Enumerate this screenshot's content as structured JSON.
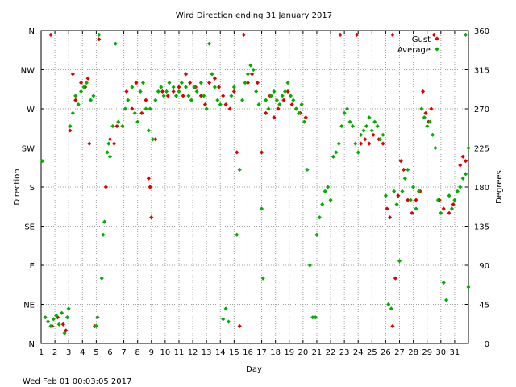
{
  "chart_data": {
    "type": "scatter",
    "title": "Wird Direction ending 31 January 2017",
    "xlabel": "Day",
    "ylabel_left": "Direction",
    "ylabel_right": "Degrees",
    "footer": "Wed Feb 01 00:03:05 2017",
    "xlim": [
      1,
      32
    ],
    "ylim": [
      0,
      360
    ],
    "grid": true,
    "legend_placement": "top-right",
    "x_ticks": [
      "1",
      "2",
      "3",
      "4",
      "5",
      "6",
      "7",
      "8",
      "9",
      "10",
      "11",
      "12",
      "13",
      "14",
      "15",
      "16",
      "17",
      "18",
      "19",
      "20",
      "21",
      "22",
      "23",
      "24",
      "25",
      "26",
      "27",
      "28",
      "29",
      "30",
      "31"
    ],
    "y_ticks_left": [
      {
        "value": 0,
        "label": "N"
      },
      {
        "value": 45,
        "label": "NE"
      },
      {
        "value": 90,
        "label": "E"
      },
      {
        "value": 135,
        "label": "SE"
      },
      {
        "value": 180,
        "label": "S"
      },
      {
        "value": 225,
        "label": "SW"
      },
      {
        "value": 270,
        "label": "W"
      },
      {
        "value": 315,
        "label": "NW"
      },
      {
        "value": 360,
        "label": "N"
      }
    ],
    "y_ticks_right": [
      {
        "value": 0,
        "label": "0"
      },
      {
        "value": 45,
        "label": "45"
      },
      {
        "value": 90,
        "label": "90"
      },
      {
        "value": 135,
        "label": "135"
      },
      {
        "value": 180,
        "label": "180"
      },
      {
        "value": 225,
        "label": "225"
      },
      {
        "value": 270,
        "label": "270"
      },
      {
        "value": 315,
        "label": "315"
      },
      {
        "value": 360,
        "label": "360"
      }
    ],
    "series": [
      {
        "name": "Gust",
        "color": "#e00000",
        "points": [
          [
            1.7,
            355
          ],
          [
            1.5,
            25
          ],
          [
            1.8,
            20
          ],
          [
            2.2,
            30
          ],
          [
            2.6,
            22
          ],
          [
            2.8,
            15
          ],
          [
            3.1,
            245
          ],
          [
            3.3,
            310
          ],
          [
            3.5,
            280
          ],
          [
            3.9,
            300
          ],
          [
            4.2,
            295
          ],
          [
            4.4,
            305
          ],
          [
            4.5,
            230
          ],
          [
            4.9,
            20
          ],
          [
            5.2,
            350
          ],
          [
            5.7,
            180
          ],
          [
            6.0,
            235
          ],
          [
            6.3,
            230
          ],
          [
            6.5,
            250
          ],
          [
            7.2,
            290
          ],
          [
            7.6,
            270
          ],
          [
            7.9,
            300
          ],
          [
            8.3,
            265
          ],
          [
            8.6,
            280
          ],
          [
            8.8,
            190
          ],
          [
            8.9,
            180
          ],
          [
            9.0,
            145
          ],
          [
            9.3,
            235
          ],
          [
            9.8,
            290
          ],
          [
            10.2,
            285
          ],
          [
            10.6,
            290
          ],
          [
            11.0,
            295
          ],
          [
            11.3,
            285
          ],
          [
            11.5,
            310
          ],
          [
            11.8,
            300
          ],
          [
            12.2,
            295
          ],
          [
            12.6,
            285
          ],
          [
            12.9,
            275
          ],
          [
            13.2,
            300
          ],
          [
            13.6,
            305
          ],
          [
            13.9,
            295
          ],
          [
            14.2,
            285
          ],
          [
            14.4,
            275
          ],
          [
            14.7,
            270
          ],
          [
            15.0,
            290
          ],
          [
            15.2,
            220
          ],
          [
            15.4,
            20
          ],
          [
            15.7,
            355
          ],
          [
            16.0,
            300
          ],
          [
            16.3,
            310
          ],
          [
            16.7,
            300
          ],
          [
            17.0,
            220
          ],
          [
            17.3,
            265
          ],
          [
            17.6,
            285
          ],
          [
            17.9,
            260
          ],
          [
            18.2,
            270
          ],
          [
            18.6,
            280
          ],
          [
            18.9,
            290
          ],
          [
            19.2,
            275
          ],
          [
            19.5,
            270
          ],
          [
            19.8,
            265
          ],
          [
            20.2,
            260
          ],
          [
            22.7,
            355
          ],
          [
            23.9,
            355
          ],
          [
            24.2,
            230
          ],
          [
            24.5,
            235
          ],
          [
            24.8,
            230
          ],
          [
            25.1,
            240
          ],
          [
            25.5,
            235
          ],
          [
            25.8,
            230
          ],
          [
            26.1,
            155
          ],
          [
            26.3,
            145
          ],
          [
            26.5,
            20
          ],
          [
            26.7,
            75
          ],
          [
            26.9,
            170
          ],
          [
            27.1,
            210
          ],
          [
            27.3,
            200
          ],
          [
            27.6,
            165
          ],
          [
            27.9,
            150
          ],
          [
            28.2,
            165
          ],
          [
            28.5,
            175
          ],
          [
            28.7,
            290
          ],
          [
            28.9,
            265
          ],
          [
            29.1,
            255
          ],
          [
            29.3,
            270
          ],
          [
            29.9,
            165
          ],
          [
            30.2,
            155
          ],
          [
            30.6,
            150
          ],
          [
            30.9,
            160
          ],
          [
            31.4,
            205
          ],
          [
            31.6,
            215
          ],
          [
            31.8,
            210
          ],
          [
            26.5,
            355
          ],
          [
            29.5,
            355
          ]
        ]
      },
      {
        "name": "Average",
        "color": "#00b000",
        "points": [
          [
            1.1,
            210
          ],
          [
            1.3,
            30
          ],
          [
            1.5,
            25
          ],
          [
            1.7,
            20
          ],
          [
            1.9,
            28
          ],
          [
            2.1,
            32
          ],
          [
            2.3,
            22
          ],
          [
            2.5,
            35
          ],
          [
            2.7,
            12
          ],
          [
            2.9,
            30
          ],
          [
            3.0,
            40
          ],
          [
            3.1,
            250
          ],
          [
            3.3,
            265
          ],
          [
            3.5,
            285
          ],
          [
            3.7,
            275
          ],
          [
            3.9,
            290
          ],
          [
            4.1,
            295
          ],
          [
            4.3,
            300
          ],
          [
            4.6,
            280
          ],
          [
            4.8,
            285
          ],
          [
            5.0,
            20
          ],
          [
            5.1,
            30
          ],
          [
            5.2,
            355
          ],
          [
            5.4,
            75
          ],
          [
            5.5,
            125
          ],
          [
            5.6,
            140
          ],
          [
            5.8,
            220
          ],
          [
            5.9,
            230
          ],
          [
            6.0,
            215
          ],
          [
            6.2,
            250
          ],
          [
            6.4,
            345
          ],
          [
            6.6,
            255
          ],
          [
            6.9,
            250
          ],
          [
            7.1,
            270
          ],
          [
            7.3,
            280
          ],
          [
            7.6,
            295
          ],
          [
            7.8,
            265
          ],
          [
            8.0,
            255
          ],
          [
            8.2,
            290
          ],
          [
            8.4,
            300
          ],
          [
            8.6,
            270
          ],
          [
            8.8,
            245
          ],
          [
            8.9,
            270
          ],
          [
            9.1,
            235
          ],
          [
            9.3,
            280
          ],
          [
            9.5,
            290
          ],
          [
            9.7,
            295
          ],
          [
            9.9,
            285
          ],
          [
            10.1,
            290
          ],
          [
            10.3,
            300
          ],
          [
            10.6,
            295
          ],
          [
            10.8,
            285
          ],
          [
            11.0,
            290
          ],
          [
            11.2,
            300
          ],
          [
            11.5,
            295
          ],
          [
            11.7,
            285
          ],
          [
            11.9,
            280
          ],
          [
            12.1,
            295
          ],
          [
            12.3,
            290
          ],
          [
            12.6,
            300
          ],
          [
            12.8,
            285
          ],
          [
            13.0,
            270
          ],
          [
            13.2,
            345
          ],
          [
            13.4,
            310
          ],
          [
            13.6,
            295
          ],
          [
            13.8,
            280
          ],
          [
            14.0,
            275
          ],
          [
            14.2,
            28
          ],
          [
            14.4,
            40
          ],
          [
            14.6,
            25
          ],
          [
            14.8,
            285
          ],
          [
            15.0,
            295
          ],
          [
            15.2,
            125
          ],
          [
            15.4,
            200
          ],
          [
            15.6,
            280
          ],
          [
            15.8,
            300
          ],
          [
            16.0,
            310
          ],
          [
            16.2,
            320
          ],
          [
            16.4,
            315
          ],
          [
            16.6,
            290
          ],
          [
            16.8,
            275
          ],
          [
            17.0,
            155
          ],
          [
            17.1,
            75
          ],
          [
            17.3,
            280
          ],
          [
            17.5,
            270
          ],
          [
            17.7,
            285
          ],
          [
            17.9,
            290
          ],
          [
            18.1,
            280
          ],
          [
            18.3,
            275
          ],
          [
            18.5,
            285
          ],
          [
            18.7,
            290
          ],
          [
            18.9,
            300
          ],
          [
            19.1,
            285
          ],
          [
            19.3,
            280
          ],
          [
            19.5,
            270
          ],
          [
            19.7,
            265
          ],
          [
            19.9,
            275
          ],
          [
            20.1,
            255
          ],
          [
            20.3,
            200
          ],
          [
            20.5,
            90
          ],
          [
            20.7,
            30
          ],
          [
            20.9,
            30
          ],
          [
            21.0,
            125
          ],
          [
            21.2,
            145
          ],
          [
            21.4,
            160
          ],
          [
            21.6,
            175
          ],
          [
            21.8,
            180
          ],
          [
            22.0,
            165
          ],
          [
            22.2,
            215
          ],
          [
            22.4,
            220
          ],
          [
            22.6,
            230
          ],
          [
            22.8,
            250
          ],
          [
            23.0,
            265
          ],
          [
            23.2,
            270
          ],
          [
            23.4,
            255
          ],
          [
            23.6,
            250
          ],
          [
            23.8,
            230
          ],
          [
            24.0,
            220
          ],
          [
            24.2,
            240
          ],
          [
            24.4,
            245
          ],
          [
            24.6,
            250
          ],
          [
            24.8,
            260
          ],
          [
            25.0,
            245
          ],
          [
            25.2,
            255
          ],
          [
            25.4,
            250
          ],
          [
            25.6,
            235
          ],
          [
            25.8,
            240
          ],
          [
            26.0,
            170
          ],
          [
            26.2,
            45
          ],
          [
            26.4,
            40
          ],
          [
            26.6,
            175
          ],
          [
            26.8,
            160
          ],
          [
            27.0,
            95
          ],
          [
            27.2,
            175
          ],
          [
            27.4,
            190
          ],
          [
            27.6,
            200
          ],
          [
            27.8,
            165
          ],
          [
            28.0,
            180
          ],
          [
            28.2,
            155
          ],
          [
            28.4,
            175
          ],
          [
            28.6,
            270
          ],
          [
            28.8,
            260
          ],
          [
            29.0,
            250
          ],
          [
            29.2,
            255
          ],
          [
            29.4,
            240
          ],
          [
            29.6,
            225
          ],
          [
            29.8,
            165
          ],
          [
            30.0,
            150
          ],
          [
            30.2,
            70
          ],
          [
            30.4,
            50
          ],
          [
            30.6,
            170
          ],
          [
            30.8,
            155
          ],
          [
            31.0,
            165
          ],
          [
            31.2,
            175
          ],
          [
            31.4,
            180
          ],
          [
            31.6,
            190
          ],
          [
            31.8,
            195
          ],
          [
            32.0,
            65
          ],
          [
            32.0,
            225
          ],
          [
            31.8,
            355
          ]
        ]
      }
    ]
  }
}
